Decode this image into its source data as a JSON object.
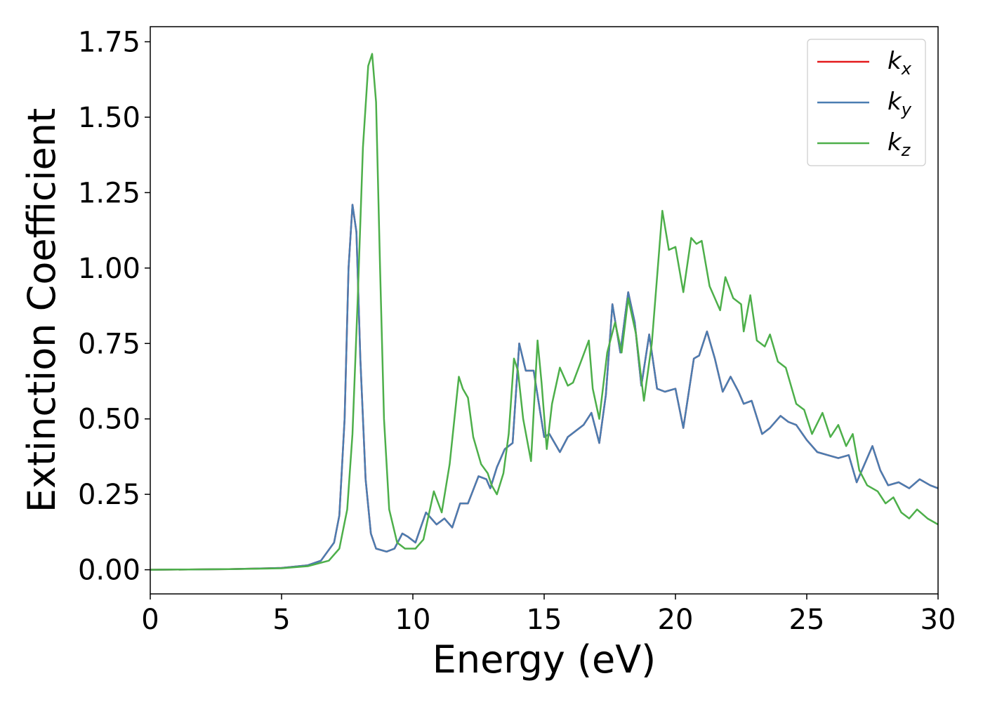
{
  "chart_data": {
    "type": "line",
    "xlabel": "Energy (eV)",
    "ylabel": "Extinction Coefficient",
    "xlim": [
      0,
      30
    ],
    "ylim": [
      -0.08,
      1.8
    ],
    "xticks": [
      0,
      5,
      10,
      15,
      20,
      25,
      30
    ],
    "xtick_labels": [
      "0",
      "5",
      "10",
      "15",
      "20",
      "25",
      "30"
    ],
    "yticks": [
      0,
      0.25,
      0.5,
      0.75,
      1.0,
      1.25,
      1.5,
      1.75
    ],
    "ytick_labels": [
      "0.00",
      "0.25",
      "0.50",
      "0.75",
      "1.00",
      "1.25",
      "1.50",
      "1.75"
    ],
    "grid": false,
    "legend_position": "top-right",
    "series": [
      {
        "name": "k",
        "subscript": "x",
        "color": "#e41a1c",
        "points": [
          [
            0,
            0
          ],
          [
            3,
            0.002
          ],
          [
            5,
            0.006
          ],
          [
            6,
            0.015
          ],
          [
            6.5,
            0.03
          ],
          [
            7,
            0.09
          ],
          [
            7.2,
            0.18
          ],
          [
            7.4,
            0.5
          ],
          [
            7.55,
            1.0
          ],
          [
            7.7,
            1.21
          ],
          [
            7.85,
            1.12
          ],
          [
            8.0,
            0.7
          ],
          [
            8.2,
            0.3
          ],
          [
            8.4,
            0.12
          ],
          [
            8.6,
            0.07
          ],
          [
            9,
            0.06
          ],
          [
            9.3,
            0.07
          ],
          [
            9.6,
            0.12
          ],
          [
            9.8,
            0.11
          ],
          [
            10.1,
            0.09
          ],
          [
            10.5,
            0.19
          ],
          [
            10.9,
            0.15
          ],
          [
            11.2,
            0.17
          ],
          [
            11.5,
            0.14
          ],
          [
            11.8,
            0.22
          ],
          [
            12.1,
            0.22
          ],
          [
            12.5,
            0.31
          ],
          [
            12.8,
            0.3
          ],
          [
            12.95,
            0.27
          ],
          [
            13.2,
            0.34
          ],
          [
            13.5,
            0.4
          ],
          [
            13.8,
            0.42
          ],
          [
            14.05,
            0.75
          ],
          [
            14.3,
            0.66
          ],
          [
            14.6,
            0.66
          ],
          [
            14.8,
            0.55
          ],
          [
            15.0,
            0.44
          ],
          [
            15.2,
            0.45
          ],
          [
            15.6,
            0.39
          ],
          [
            15.9,
            0.44
          ],
          [
            16.2,
            0.46
          ],
          [
            16.5,
            0.48
          ],
          [
            16.8,
            0.52
          ],
          [
            17.1,
            0.42
          ],
          [
            17.35,
            0.58
          ],
          [
            17.6,
            0.88
          ],
          [
            17.9,
            0.72
          ],
          [
            18.2,
            0.92
          ],
          [
            18.45,
            0.82
          ],
          [
            18.7,
            0.61
          ],
          [
            19.0,
            0.78
          ],
          [
            19.3,
            0.6
          ],
          [
            19.6,
            0.59
          ],
          [
            20.0,
            0.6
          ],
          [
            20.3,
            0.47
          ],
          [
            20.7,
            0.7
          ],
          [
            20.9,
            0.71
          ],
          [
            21.2,
            0.79
          ],
          [
            21.5,
            0.7
          ],
          [
            21.8,
            0.59
          ],
          [
            22.1,
            0.64
          ],
          [
            22.4,
            0.59
          ],
          [
            22.6,
            0.55
          ],
          [
            22.9,
            0.56
          ],
          [
            23.3,
            0.45
          ],
          [
            23.6,
            0.47
          ],
          [
            24.0,
            0.51
          ],
          [
            24.3,
            0.49
          ],
          [
            24.6,
            0.48
          ],
          [
            25.0,
            0.43
          ],
          [
            25.4,
            0.39
          ],
          [
            25.8,
            0.38
          ],
          [
            26.2,
            0.37
          ],
          [
            26.6,
            0.38
          ],
          [
            26.9,
            0.29
          ],
          [
            27.2,
            0.35
          ],
          [
            27.5,
            0.41
          ],
          [
            27.8,
            0.33
          ],
          [
            28.1,
            0.28
          ],
          [
            28.5,
            0.29
          ],
          [
            28.9,
            0.27
          ],
          [
            29.3,
            0.3
          ],
          [
            29.7,
            0.28
          ],
          [
            30,
            0.27
          ]
        ]
      },
      {
        "name": "k",
        "subscript": "y",
        "color": "#4a7db1",
        "points": [
          [
            0,
            0
          ],
          [
            3,
            0.002
          ],
          [
            5,
            0.006
          ],
          [
            6,
            0.015
          ],
          [
            6.5,
            0.03
          ],
          [
            7,
            0.09
          ],
          [
            7.2,
            0.18
          ],
          [
            7.4,
            0.5
          ],
          [
            7.55,
            1.0
          ],
          [
            7.7,
            1.21
          ],
          [
            7.85,
            1.12
          ],
          [
            8.0,
            0.7
          ],
          [
            8.2,
            0.3
          ],
          [
            8.4,
            0.12
          ],
          [
            8.6,
            0.07
          ],
          [
            9,
            0.06
          ],
          [
            9.3,
            0.07
          ],
          [
            9.6,
            0.12
          ],
          [
            9.8,
            0.11
          ],
          [
            10.1,
            0.09
          ],
          [
            10.5,
            0.19
          ],
          [
            10.9,
            0.15
          ],
          [
            11.2,
            0.17
          ],
          [
            11.5,
            0.14
          ],
          [
            11.8,
            0.22
          ],
          [
            12.1,
            0.22
          ],
          [
            12.5,
            0.31
          ],
          [
            12.8,
            0.3
          ],
          [
            12.95,
            0.27
          ],
          [
            13.2,
            0.34
          ],
          [
            13.5,
            0.4
          ],
          [
            13.8,
            0.42
          ],
          [
            14.05,
            0.75
          ],
          [
            14.3,
            0.66
          ],
          [
            14.6,
            0.66
          ],
          [
            14.8,
            0.55
          ],
          [
            15.0,
            0.44
          ],
          [
            15.2,
            0.45
          ],
          [
            15.6,
            0.39
          ],
          [
            15.9,
            0.44
          ],
          [
            16.2,
            0.46
          ],
          [
            16.5,
            0.48
          ],
          [
            16.8,
            0.52
          ],
          [
            17.1,
            0.42
          ],
          [
            17.35,
            0.58
          ],
          [
            17.6,
            0.88
          ],
          [
            17.9,
            0.72
          ],
          [
            18.2,
            0.92
          ],
          [
            18.45,
            0.82
          ],
          [
            18.7,
            0.61
          ],
          [
            19.0,
            0.78
          ],
          [
            19.3,
            0.6
          ],
          [
            19.6,
            0.59
          ],
          [
            20.0,
            0.6
          ],
          [
            20.3,
            0.47
          ],
          [
            20.7,
            0.7
          ],
          [
            20.9,
            0.71
          ],
          [
            21.2,
            0.79
          ],
          [
            21.5,
            0.7
          ],
          [
            21.8,
            0.59
          ],
          [
            22.1,
            0.64
          ],
          [
            22.4,
            0.59
          ],
          [
            22.6,
            0.55
          ],
          [
            22.9,
            0.56
          ],
          [
            23.3,
            0.45
          ],
          [
            23.6,
            0.47
          ],
          [
            24.0,
            0.51
          ],
          [
            24.3,
            0.49
          ],
          [
            24.6,
            0.48
          ],
          [
            25.0,
            0.43
          ],
          [
            25.4,
            0.39
          ],
          [
            25.8,
            0.38
          ],
          [
            26.2,
            0.37
          ],
          [
            26.6,
            0.38
          ],
          [
            26.9,
            0.29
          ],
          [
            27.2,
            0.35
          ],
          [
            27.5,
            0.41
          ],
          [
            27.8,
            0.33
          ],
          [
            28.1,
            0.28
          ],
          [
            28.5,
            0.29
          ],
          [
            28.9,
            0.27
          ],
          [
            29.3,
            0.3
          ],
          [
            29.7,
            0.28
          ],
          [
            30,
            0.27
          ]
        ]
      },
      {
        "name": "k",
        "subscript": "z",
        "color": "#4daf4a",
        "points": [
          [
            0,
            0
          ],
          [
            3,
            0.002
          ],
          [
            5,
            0.005
          ],
          [
            6,
            0.012
          ],
          [
            6.8,
            0.03
          ],
          [
            7.2,
            0.07
          ],
          [
            7.5,
            0.2
          ],
          [
            7.7,
            0.45
          ],
          [
            7.9,
            0.9
          ],
          [
            8.1,
            1.4
          ],
          [
            8.3,
            1.67
          ],
          [
            8.45,
            1.71
          ],
          [
            8.6,
            1.55
          ],
          [
            8.75,
            1.0
          ],
          [
            8.9,
            0.5
          ],
          [
            9.1,
            0.2
          ],
          [
            9.4,
            0.09
          ],
          [
            9.7,
            0.07
          ],
          [
            10.1,
            0.07
          ],
          [
            10.4,
            0.1
          ],
          [
            10.8,
            0.26
          ],
          [
            11.1,
            0.19
          ],
          [
            11.4,
            0.35
          ],
          [
            11.75,
            0.64
          ],
          [
            11.9,
            0.6
          ],
          [
            12.1,
            0.57
          ],
          [
            12.3,
            0.44
          ],
          [
            12.6,
            0.35
          ],
          [
            12.85,
            0.32
          ],
          [
            13.0,
            0.28
          ],
          [
            13.2,
            0.25
          ],
          [
            13.45,
            0.32
          ],
          [
            13.65,
            0.45
          ],
          [
            13.85,
            0.7
          ],
          [
            14.0,
            0.66
          ],
          [
            14.2,
            0.5
          ],
          [
            14.5,
            0.36
          ],
          [
            14.75,
            0.76
          ],
          [
            14.9,
            0.62
          ],
          [
            15.1,
            0.4
          ],
          [
            15.3,
            0.55
          ],
          [
            15.6,
            0.67
          ],
          [
            15.9,
            0.61
          ],
          [
            16.1,
            0.62
          ],
          [
            16.4,
            0.69
          ],
          [
            16.7,
            0.76
          ],
          [
            16.85,
            0.6
          ],
          [
            17.1,
            0.5
          ],
          [
            17.4,
            0.72
          ],
          [
            17.7,
            0.82
          ],
          [
            17.95,
            0.72
          ],
          [
            18.2,
            0.9
          ],
          [
            18.5,
            0.78
          ],
          [
            18.8,
            0.56
          ],
          [
            19.1,
            0.75
          ],
          [
            19.5,
            1.19
          ],
          [
            19.75,
            1.06
          ],
          [
            20.0,
            1.07
          ],
          [
            20.3,
            0.92
          ],
          [
            20.6,
            1.1
          ],
          [
            20.8,
            1.08
          ],
          [
            21.0,
            1.09
          ],
          [
            21.3,
            0.94
          ],
          [
            21.7,
            0.86
          ],
          [
            21.9,
            0.97
          ],
          [
            22.2,
            0.9
          ],
          [
            22.5,
            0.88
          ],
          [
            22.6,
            0.79
          ],
          [
            22.85,
            0.91
          ],
          [
            23.1,
            0.76
          ],
          [
            23.4,
            0.74
          ],
          [
            23.6,
            0.78
          ],
          [
            23.9,
            0.69
          ],
          [
            24.2,
            0.67
          ],
          [
            24.6,
            0.55
          ],
          [
            24.9,
            0.53
          ],
          [
            25.2,
            0.45
          ],
          [
            25.6,
            0.52
          ],
          [
            25.9,
            0.44
          ],
          [
            26.2,
            0.48
          ],
          [
            26.5,
            0.41
          ],
          [
            26.75,
            0.45
          ],
          [
            27.0,
            0.33
          ],
          [
            27.3,
            0.28
          ],
          [
            27.7,
            0.26
          ],
          [
            28.0,
            0.22
          ],
          [
            28.3,
            0.24
          ],
          [
            28.6,
            0.19
          ],
          [
            28.9,
            0.17
          ],
          [
            29.2,
            0.2
          ],
          [
            29.6,
            0.17
          ],
          [
            30,
            0.15
          ]
        ]
      }
    ]
  }
}
